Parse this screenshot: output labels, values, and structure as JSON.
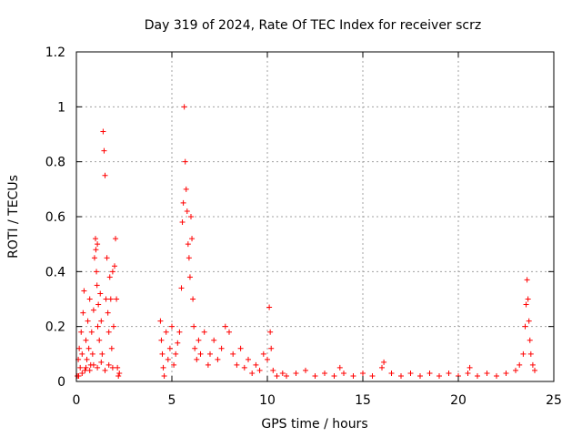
{
  "chart_data": {
    "type": "scatter",
    "title": "Day 319 of 2024, Rate Of TEC Index for receiver scrz",
    "xlabel": "GPS time / hours",
    "ylabel": "ROTI / TECUs",
    "xlim": [
      0,
      25
    ],
    "ylim": [
      0,
      1.2
    ],
    "xticks": [
      0,
      5,
      10,
      15,
      20,
      25
    ],
    "xtick_labels": [
      "0",
      "5",
      "10",
      "15",
      "20",
      "25"
    ],
    "yticks": [
      0,
      0.2,
      0.4,
      0.6,
      0.8,
      1,
      1.2
    ],
    "ytick_labels": [
      "0",
      "0.2",
      "0.4",
      "0.6",
      "0.8",
      "1",
      "1.2"
    ],
    "grid": true,
    "marker": "+",
    "color": "#ff0000",
    "series": [
      {
        "name": "ROTI",
        "points": [
          [
            0.05,
            0.02
          ],
          [
            0.1,
            0.08
          ],
          [
            0.15,
            0.12
          ],
          [
            0.2,
            0.05
          ],
          [
            0.25,
            0.18
          ],
          [
            0.3,
            0.1
          ],
          [
            0.35,
            0.25
          ],
          [
            0.4,
            0.33
          ],
          [
            0.45,
            0.04
          ],
          [
            0.5,
            0.15
          ],
          [
            0.55,
            0.08
          ],
          [
            0.6,
            0.22
          ],
          [
            0.65,
            0.12
          ],
          [
            0.7,
            0.3
          ],
          [
            0.75,
            0.06
          ],
          [
            0.8,
            0.18
          ],
          [
            0.85,
            0.1
          ],
          [
            0.9,
            0.26
          ],
          [
            0.95,
            0.45
          ],
          [
            1.0,
            0.52
          ],
          [
            1.02,
            0.48
          ],
          [
            1.05,
            0.4
          ],
          [
            1.08,
            0.35
          ],
          [
            1.1,
            0.5
          ],
          [
            1.12,
            0.2
          ],
          [
            1.15,
            0.28
          ],
          [
            1.2,
            0.15
          ],
          [
            1.25,
            0.32
          ],
          [
            1.3,
            0.22
          ],
          [
            1.35,
            0.1
          ],
          [
            1.4,
            0.91
          ],
          [
            1.45,
            0.84
          ],
          [
            1.5,
            0.75
          ],
          [
            1.55,
            0.3
          ],
          [
            1.6,
            0.45
          ],
          [
            1.65,
            0.25
          ],
          [
            1.7,
            0.18
          ],
          [
            1.75,
            0.38
          ],
          [
            1.8,
            0.3
          ],
          [
            1.85,
            0.12
          ],
          [
            1.9,
            0.4
          ],
          [
            1.95,
            0.2
          ],
          [
            2.0,
            0.42
          ],
          [
            2.05,
            0.52
          ],
          [
            2.1,
            0.3
          ],
          [
            2.15,
            0.05
          ],
          [
            2.2,
            0.02
          ],
          [
            2.25,
            0.03
          ],
          [
            0.12,
            0.02
          ],
          [
            0.3,
            0.03
          ],
          [
            0.5,
            0.05
          ],
          [
            0.7,
            0.04
          ],
          [
            0.9,
            0.06
          ],
          [
            1.1,
            0.05
          ],
          [
            1.3,
            0.07
          ],
          [
            1.5,
            0.04
          ],
          [
            1.7,
            0.06
          ],
          [
            1.9,
            0.05
          ],
          [
            4.4,
            0.22
          ],
          [
            4.45,
            0.15
          ],
          [
            4.5,
            0.1
          ],
          [
            4.55,
            0.05
          ],
          [
            4.6,
            0.02
          ],
          [
            4.7,
            0.18
          ],
          [
            4.8,
            0.08
          ],
          [
            4.9,
            0.12
          ],
          [
            5.0,
            0.2
          ],
          [
            5.1,
            0.06
          ],
          [
            5.2,
            0.1
          ],
          [
            5.3,
            0.14
          ],
          [
            5.4,
            0.18
          ],
          [
            5.5,
            0.34
          ],
          [
            5.55,
            0.58
          ],
          [
            5.6,
            0.65
          ],
          [
            5.65,
            1.0
          ],
          [
            5.7,
            0.8
          ],
          [
            5.75,
            0.7
          ],
          [
            5.8,
            0.62
          ],
          [
            5.85,
            0.5
          ],
          [
            5.9,
            0.45
          ],
          [
            5.95,
            0.38
          ],
          [
            6.0,
            0.6
          ],
          [
            6.05,
            0.52
          ],
          [
            6.1,
            0.3
          ],
          [
            6.15,
            0.2
          ],
          [
            6.2,
            0.12
          ],
          [
            6.3,
            0.08
          ],
          [
            6.4,
            0.15
          ],
          [
            6.5,
            0.1
          ],
          [
            6.7,
            0.18
          ],
          [
            6.9,
            0.06
          ],
          [
            7.0,
            0.1
          ],
          [
            7.2,
            0.15
          ],
          [
            7.4,
            0.08
          ],
          [
            7.6,
            0.12
          ],
          [
            7.8,
            0.2
          ],
          [
            8.0,
            0.18
          ],
          [
            8.2,
            0.1
          ],
          [
            8.4,
            0.06
          ],
          [
            8.6,
            0.12
          ],
          [
            8.8,
            0.05
          ],
          [
            9.0,
            0.08
          ],
          [
            9.2,
            0.03
          ],
          [
            9.4,
            0.06
          ],
          [
            9.6,
            0.04
          ],
          [
            9.8,
            0.1
          ],
          [
            10.0,
            0.08
          ],
          [
            10.1,
            0.27
          ],
          [
            10.15,
            0.18
          ],
          [
            10.2,
            0.12
          ],
          [
            10.3,
            0.04
          ],
          [
            10.5,
            0.02
          ],
          [
            10.8,
            0.03
          ],
          [
            11.0,
            0.02
          ],
          [
            11.5,
            0.03
          ],
          [
            12.0,
            0.04
          ],
          [
            12.5,
            0.02
          ],
          [
            13.0,
            0.03
          ],
          [
            13.5,
            0.02
          ],
          [
            13.8,
            0.05
          ],
          [
            14.0,
            0.03
          ],
          [
            14.5,
            0.02
          ],
          [
            15.0,
            0.03
          ],
          [
            15.5,
            0.02
          ],
          [
            16.0,
            0.05
          ],
          [
            16.1,
            0.07
          ],
          [
            16.5,
            0.03
          ],
          [
            17.0,
            0.02
          ],
          [
            17.5,
            0.03
          ],
          [
            18.0,
            0.02
          ],
          [
            18.5,
            0.03
          ],
          [
            19.0,
            0.02
          ],
          [
            19.5,
            0.03
          ],
          [
            20.0,
            0.02
          ],
          [
            20.5,
            0.03
          ],
          [
            20.6,
            0.05
          ],
          [
            21.0,
            0.02
          ],
          [
            21.5,
            0.03
          ],
          [
            22.0,
            0.02
          ],
          [
            22.5,
            0.03
          ],
          [
            23.0,
            0.04
          ],
          [
            23.2,
            0.06
          ],
          [
            23.4,
            0.1
          ],
          [
            23.5,
            0.2
          ],
          [
            23.55,
            0.28
          ],
          [
            23.6,
            0.37
          ],
          [
            23.65,
            0.3
          ],
          [
            23.7,
            0.22
          ],
          [
            23.75,
            0.15
          ],
          [
            23.8,
            0.1
          ],
          [
            23.9,
            0.06
          ],
          [
            24.0,
            0.04
          ]
        ]
      }
    ]
  }
}
